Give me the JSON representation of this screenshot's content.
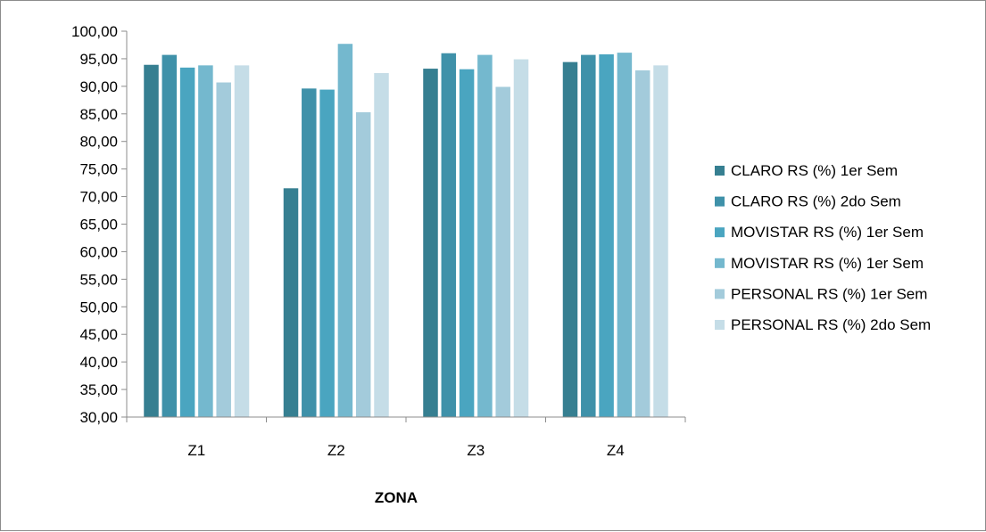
{
  "chart_data": {
    "type": "bar",
    "title": "",
    "xlabel": "ZONA",
    "ylabel": "",
    "ylim": [
      30,
      100
    ],
    "ytick_step": 5,
    "ytick_labels": [
      "30,00",
      "35,00",
      "40,00",
      "45,00",
      "50,00",
      "55,00",
      "60,00",
      "65,00",
      "70,00",
      "75,00",
      "80,00",
      "85,00",
      "90,00",
      "95,00",
      "100,00"
    ],
    "grid": false,
    "legend_position": "right",
    "categories": [
      "Z1",
      "Z2",
      "Z3",
      "Z4"
    ],
    "series": [
      {
        "name": "CLARO RS (%) 1er Sem",
        "color": "#367f91",
        "values": [
          93.9,
          71.5,
          93.2,
          94.4
        ]
      },
      {
        "name": "CLARO RS (%) 2do Sem",
        "color": "#3f91a9",
        "values": [
          95.7,
          89.6,
          96.0,
          95.7
        ]
      },
      {
        "name": "MOVISTAR RS (%) 1er Sem",
        "color": "#4aa5c0",
        "values": [
          93.4,
          89.4,
          93.1,
          95.8
        ]
      },
      {
        "name": "MOVISTAR RS (%) 1er Sem",
        "color": "#74b8ce",
        "values": [
          93.8,
          97.7,
          95.7,
          96.1
        ]
      },
      {
        "name": "PERSONAL RS (%) 1er Sem",
        "color": "#a3cbdb",
        "values": [
          90.7,
          85.3,
          89.9,
          92.9
        ]
      },
      {
        "name": "PERSONAL RS (%) 2do Sem",
        "color": "#c5dde7",
        "values": [
          93.8,
          92.4,
          94.9,
          93.8
        ]
      }
    ]
  }
}
